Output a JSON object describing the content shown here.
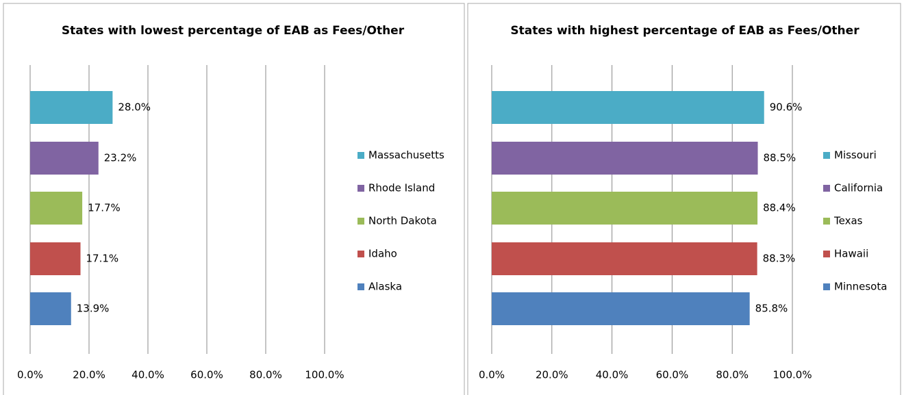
{
  "chart_data": [
    {
      "type": "bar",
      "orientation": "horizontal",
      "title": "States with lowest percentage of EAB as Fees/Other",
      "categories": [
        "Massachusetts",
        "Rhode Island",
        "North Dakota",
        "Idaho",
        "Alaska"
      ],
      "values": [
        28.0,
        23.2,
        17.7,
        17.1,
        13.9
      ],
      "value_labels": [
        "28.0%",
        "23.2%",
        "17.7%",
        "17.1%",
        "13.9%"
      ],
      "colors": [
        "#4bacc6",
        "#8064a2",
        "#9bbb59",
        "#c0504d",
        "#4f81bd"
      ],
      "xlim": [
        0,
        100
      ],
      "xticks": [
        {
          "value": 0,
          "label": "0.0%"
        },
        {
          "value": 20,
          "label": "20.0%"
        },
        {
          "value": 40,
          "label": "40.0%"
        },
        {
          "value": 60,
          "label": "60.0%"
        },
        {
          "value": 80,
          "label": "80.0%"
        },
        {
          "value": 100,
          "label": "100.0%"
        }
      ],
      "grid": true,
      "legend": "right"
    },
    {
      "type": "bar",
      "orientation": "horizontal",
      "title": "States with highest percentage of EAB as Fees/Other",
      "categories": [
        "Missouri",
        "California",
        "Texas",
        "Hawaii",
        "Minnesota"
      ],
      "values": [
        90.6,
        88.5,
        88.4,
        88.3,
        85.8
      ],
      "value_labels": [
        "90.6%",
        "88.5%",
        "88.4%",
        "88.3%",
        "85.8%"
      ],
      "colors": [
        "#4bacc6",
        "#8064a2",
        "#9bbb59",
        "#c0504d",
        "#4f81bd"
      ],
      "xlim": [
        0,
        100
      ],
      "xticks": [
        {
          "value": 0,
          "label": "0.0%"
        },
        {
          "value": 20,
          "label": "20.0%"
        },
        {
          "value": 40,
          "label": "40.0%"
        },
        {
          "value": 60,
          "label": "60.0%"
        },
        {
          "value": 80,
          "label": "80.0%"
        },
        {
          "value": 100,
          "label": "100.0%"
        }
      ],
      "grid": true,
      "legend": "right"
    }
  ]
}
